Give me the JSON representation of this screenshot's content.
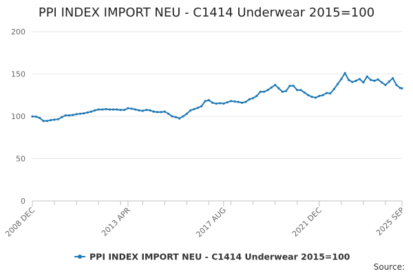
{
  "chart_data": {
    "type": "line",
    "title": "PPI INDEX IMPORT NEU - C1414 Underwear 2015=100",
    "xlabel": "",
    "ylabel": "",
    "ylim": [
      0,
      200
    ],
    "yticks": [
      0,
      50,
      100,
      150,
      200
    ],
    "x_start": "2008-12",
    "x_end": "2025-09",
    "xtick_labels": [
      {
        "label": "2008 DEC",
        "date": "2008-12"
      },
      {
        "label": "2013 APR",
        "date": "2013-04"
      },
      {
        "label": "2017 AUG",
        "date": "2017-08"
      },
      {
        "label": "2021 DEC",
        "date": "2021-12"
      },
      {
        "label": "2025 SEP",
        "date": "2025-09"
      }
    ],
    "grid": "horizontal",
    "legend_position": "bottom",
    "source_label": "Source:",
    "line_color": "#1f78b4",
    "series": [
      {
        "name": "PPI INDEX IMPORT NEU - C1414 Underwear 2015=100",
        "points": [
          [
            "2008-12",
            99.8
          ],
          [
            "2009-02",
            99.6
          ],
          [
            "2009-04",
            98
          ],
          [
            "2009-06",
            94.5
          ],
          [
            "2009-08",
            94.5
          ],
          [
            "2009-10",
            95.5
          ],
          [
            "2009-12",
            96
          ],
          [
            "2010-02",
            96.5
          ],
          [
            "2010-04",
            99
          ],
          [
            "2010-06",
            101
          ],
          [
            "2010-08",
            101
          ],
          [
            "2010-10",
            101.5
          ],
          [
            "2010-12",
            102.5
          ],
          [
            "2011-02",
            103
          ],
          [
            "2011-04",
            103.5
          ],
          [
            "2011-06",
            104.5
          ],
          [
            "2011-08",
            105.5
          ],
          [
            "2011-10",
            107
          ],
          [
            "2011-12",
            108
          ],
          [
            "2012-02",
            108
          ],
          [
            "2012-04",
            108.5
          ],
          [
            "2012-06",
            108
          ],
          [
            "2012-08",
            108
          ],
          [
            "2012-10",
            108
          ],
          [
            "2012-12",
            107.5
          ],
          [
            "2013-02",
            107.5
          ],
          [
            "2013-04",
            109.5
          ],
          [
            "2013-06",
            109
          ],
          [
            "2013-08",
            108
          ],
          [
            "2013-10",
            107
          ],
          [
            "2013-12",
            106.5
          ],
          [
            "2014-02",
            107.5
          ],
          [
            "2014-04",
            107
          ],
          [
            "2014-06",
            105.5
          ],
          [
            "2014-08",
            105
          ],
          [
            "2014-10",
            105
          ],
          [
            "2014-12",
            105.5
          ],
          [
            "2015-02",
            103
          ],
          [
            "2015-04",
            100
          ],
          [
            "2015-06",
            99
          ],
          [
            "2015-08",
            97.5
          ],
          [
            "2015-10",
            100
          ],
          [
            "2015-12",
            103
          ],
          [
            "2016-02",
            107
          ],
          [
            "2016-04",
            108.5
          ],
          [
            "2016-06",
            110
          ],
          [
            "2016-08",
            112
          ],
          [
            "2016-10",
            118
          ],
          [
            "2016-12",
            119
          ],
          [
            "2017-02",
            116
          ],
          [
            "2017-04",
            115
          ],
          [
            "2017-06",
            115.5
          ],
          [
            "2017-08",
            115
          ],
          [
            "2017-10",
            116.5
          ],
          [
            "2017-12",
            118
          ],
          [
            "2018-02",
            117.5
          ],
          [
            "2018-04",
            117
          ],
          [
            "2018-06",
            116
          ],
          [
            "2018-08",
            117
          ],
          [
            "2018-10",
            120
          ],
          [
            "2018-12",
            121.5
          ],
          [
            "2019-02",
            124
          ],
          [
            "2019-04",
            129
          ],
          [
            "2019-06",
            129
          ],
          [
            "2019-08",
            131
          ],
          [
            "2019-10",
            134
          ],
          [
            "2019-12",
            137
          ],
          [
            "2020-02",
            133
          ],
          [
            "2020-04",
            129
          ],
          [
            "2020-06",
            130
          ],
          [
            "2020-08",
            136
          ],
          [
            "2020-10",
            136
          ],
          [
            "2020-12",
            131
          ],
          [
            "2021-02",
            131
          ],
          [
            "2021-04",
            128
          ],
          [
            "2021-06",
            125
          ],
          [
            "2021-08",
            123
          ],
          [
            "2021-10",
            122
          ],
          [
            "2021-12",
            124
          ],
          [
            "2022-02",
            125
          ],
          [
            "2022-04",
            127.5
          ],
          [
            "2022-06",
            127
          ],
          [
            "2022-08",
            132
          ],
          [
            "2022-10",
            138
          ],
          [
            "2022-12",
            144
          ],
          [
            "2023-02",
            151
          ],
          [
            "2023-04",
            143
          ],
          [
            "2023-06",
            140.5
          ],
          [
            "2023-08",
            142
          ],
          [
            "2023-10",
            144
          ],
          [
            "2023-12",
            140
          ],
          [
            "2024-02",
            147
          ],
          [
            "2024-04",
            143
          ],
          [
            "2024-06",
            142
          ],
          [
            "2024-08",
            143.5
          ],
          [
            "2024-10",
            140
          ],
          [
            "2024-12",
            137
          ],
          [
            "2025-02",
            141
          ],
          [
            "2025-04",
            145
          ],
          [
            "2025-06",
            137
          ],
          [
            "2025-08",
            133.5
          ],
          [
            "2025-09",
            133
          ]
        ]
      }
    ]
  }
}
